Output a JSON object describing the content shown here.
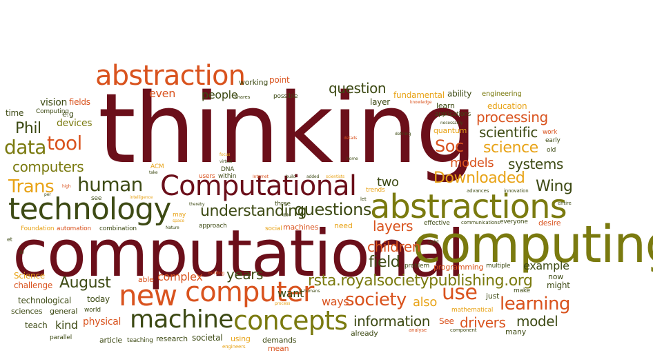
{
  "colors": {
    "maroon": "#6b0f1a",
    "orange": "#d9531e",
    "olive": "#7a7a0f",
    "gold": "#e8a317",
    "darkgreen": "#3d4a14",
    "background": "#ffffff"
  },
  "words": [
    {
      "text": "thinking",
      "color": "maroon"
    },
    {
      "text": "computational",
      "color": "maroon"
    },
    {
      "text": "computing",
      "color": "olive"
    },
    {
      "text": "abstractions",
      "color": "olive"
    },
    {
      "text": "Computational",
      "color": "maroon"
    },
    {
      "text": "technology",
      "color": "darkgreen"
    },
    {
      "text": "abstraction",
      "color": "orange"
    },
    {
      "text": "new",
      "color": "orange"
    },
    {
      "text": "computer",
      "color": "orange"
    },
    {
      "text": "machine",
      "color": "darkgreen"
    },
    {
      "text": "concepts",
      "color": "olive"
    },
    {
      "text": "rsta.royalsocietypublishing.org",
      "color": "olive"
    },
    {
      "text": "human",
      "color": "darkgreen"
    },
    {
      "text": "Downloaded",
      "color": "gold"
    },
    {
      "text": "use",
      "color": "orange"
    },
    {
      "text": "learning",
      "color": "orange"
    },
    {
      "text": "society",
      "color": "orange"
    },
    {
      "text": "questions",
      "color": "darkgreen"
    },
    {
      "text": "understanding",
      "color": "darkgreen"
    },
    {
      "text": "question",
      "color": "darkgreen"
    },
    {
      "text": "data",
      "color": "olive"
    },
    {
      "text": "tool",
      "color": "orange"
    },
    {
      "text": "Trans",
      "color": "gold"
    },
    {
      "text": "Phil",
      "color": "darkgreen"
    },
    {
      "text": "computers",
      "color": "olive"
    },
    {
      "text": "Soc",
      "color": "orange"
    },
    {
      "text": "science",
      "color": "gold"
    },
    {
      "text": "scientific",
      "color": "darkgreen"
    },
    {
      "text": "processing",
      "color": "orange"
    },
    {
      "text": "systems",
      "color": "darkgreen"
    },
    {
      "text": "models",
      "color": "orange"
    },
    {
      "text": "Wing",
      "color": "darkgreen"
    },
    {
      "text": "layers",
      "color": "orange"
    },
    {
      "text": "children",
      "color": "orange"
    },
    {
      "text": "field",
      "color": "darkgreen"
    },
    {
      "text": "information",
      "color": "darkgreen"
    },
    {
      "text": "August",
      "color": "darkgreen"
    },
    {
      "text": "years",
      "color": "darkgreen"
    },
    {
      "text": "complex",
      "color": "orange"
    },
    {
      "text": "drivers",
      "color": "orange"
    },
    {
      "text": "model",
      "color": "darkgreen"
    },
    {
      "text": "example",
      "color": "darkgreen"
    },
    {
      "text": "ways",
      "color": "orange"
    },
    {
      "text": "want",
      "color": "darkgreen"
    },
    {
      "text": "also",
      "color": "gold"
    },
    {
      "text": "two",
      "color": "darkgreen"
    },
    {
      "text": "people",
      "color": "darkgreen"
    },
    {
      "text": "even",
      "color": "orange"
    },
    {
      "text": "working",
      "color": "darkgreen"
    },
    {
      "text": "point",
      "color": "orange"
    },
    {
      "text": "vision",
      "color": "darkgreen"
    },
    {
      "text": "fields",
      "color": "orange"
    },
    {
      "text": "devices",
      "color": "olive"
    },
    {
      "text": "time",
      "color": "darkgreen"
    },
    {
      "text": "Computing",
      "color": "darkgreen"
    },
    {
      "text": "e.g",
      "color": "darkgreen"
    },
    {
      "text": "fundamental",
      "color": "gold"
    },
    {
      "text": "ability",
      "color": "darkgreen"
    },
    {
      "text": "engineering",
      "color": "olive"
    },
    {
      "text": "layer",
      "color": "darkgreen"
    },
    {
      "text": "learn",
      "color": "darkgreen"
    },
    {
      "text": "education",
      "color": "gold"
    },
    {
      "text": "applications",
      "color": "darkgreen"
    },
    {
      "text": "quantum",
      "color": "gold"
    },
    {
      "text": "work",
      "color": "orange"
    },
    {
      "text": "early",
      "color": "darkgreen"
    },
    {
      "text": "old",
      "color": "darkgreen"
    },
    {
      "text": "ACM",
      "color": "gold"
    },
    {
      "text": "DNA",
      "color": "darkgreen"
    },
    {
      "text": "users",
      "color": "orange"
    },
    {
      "text": "within",
      "color": "darkgreen"
    },
    {
      "text": "see",
      "color": "darkgreen"
    },
    {
      "text": "may",
      "color": "gold"
    },
    {
      "text": "automation",
      "color": "orange"
    },
    {
      "text": "combination",
      "color": "darkgreen"
    },
    {
      "text": "Foundation",
      "color": "gold"
    },
    {
      "text": "approach",
      "color": "darkgreen"
    },
    {
      "text": "machines",
      "color": "orange"
    },
    {
      "text": "need",
      "color": "gold"
    },
    {
      "text": "effective",
      "color": "darkgreen"
    },
    {
      "text": "everyone",
      "color": "darkgreen"
    },
    {
      "text": "desire",
      "color": "orange"
    },
    {
      "text": "communications",
      "color": "darkgreen"
    },
    {
      "text": "advances",
      "color": "darkgreen"
    },
    {
      "text": "innovation",
      "color": "darkgreen"
    },
    {
      "text": "entire",
      "color": "darkgreen"
    },
    {
      "text": "right",
      "color": "darkgreen"
    },
    {
      "text": "problem",
      "color": "darkgreen"
    },
    {
      "text": "programming",
      "color": "orange"
    },
    {
      "text": "multiple",
      "color": "darkgreen"
    },
    {
      "text": "now",
      "color": "darkgreen"
    },
    {
      "text": "might",
      "color": "darkgreen"
    },
    {
      "text": "make",
      "color": "darkgreen"
    },
    {
      "text": "just",
      "color": "darkgreen"
    },
    {
      "text": "mathematical",
      "color": "gold"
    },
    {
      "text": "See",
      "color": "orange"
    },
    {
      "text": "many",
      "color": "darkgreen"
    },
    {
      "text": "component",
      "color": "darkgreen"
    },
    {
      "text": "analyse",
      "color": "orange"
    },
    {
      "text": "already",
      "color": "darkgreen"
    },
    {
      "text": "demands",
      "color": "darkgreen"
    },
    {
      "text": "mean",
      "color": "orange"
    },
    {
      "text": "using",
      "color": "gold"
    },
    {
      "text": "engineers",
      "color": "gold"
    },
    {
      "text": "research",
      "color": "darkgreen"
    },
    {
      "text": "societal",
      "color": "darkgreen"
    },
    {
      "text": "teaching",
      "color": "darkgreen"
    },
    {
      "text": "article",
      "color": "darkgreen"
    },
    {
      "text": "physical",
      "color": "orange"
    },
    {
      "text": "kind",
      "color": "darkgreen"
    },
    {
      "text": "teach",
      "color": "darkgreen"
    },
    {
      "text": "parallel",
      "color": "darkgreen"
    },
    {
      "text": "general",
      "color": "darkgreen"
    },
    {
      "text": "sciences",
      "color": "darkgreen"
    },
    {
      "text": "world",
      "color": "darkgreen"
    },
    {
      "text": "technological",
      "color": "darkgreen"
    },
    {
      "text": "today",
      "color": "darkgreen"
    },
    {
      "text": "challenge",
      "color": "orange"
    },
    {
      "text": "Science",
      "color": "gold"
    },
    {
      "text": "able",
      "color": "orange"
    },
    {
      "text": "al",
      "color": "darkgreen"
    },
    {
      "text": "et",
      "color": "darkgreen"
    },
    {
      "text": "per",
      "color": "darkgreen"
    },
    {
      "text": "high",
      "color": "orange"
    },
    {
      "text": "intelligence",
      "color": "gold"
    },
    {
      "text": "take",
      "color": "darkgreen"
    },
    {
      "text": "shares",
      "color": "darkgreen"
    },
    {
      "text": "possible",
      "color": "darkgreen"
    },
    {
      "text": "knowledge",
      "color": "orange"
    },
    {
      "text": "necessarily",
      "color": "darkgreen"
    },
    {
      "text": "defining",
      "color": "darkgreen"
    },
    {
      "text": "details",
      "color": "orange"
    },
    {
      "text": "home",
      "color": "darkgreen"
    },
    {
      "text": "focus",
      "color": "gold"
    },
    {
      "text": "virtual",
      "color": "darkgreen"
    },
    {
      "text": "Internet",
      "color": "orange"
    },
    {
      "text": "build",
      "color": "darkgreen"
    },
    {
      "text": "added",
      "color": "darkgreen"
    },
    {
      "text": "scientists",
      "color": "gold"
    },
    {
      "text": "trends",
      "color": "gold"
    },
    {
      "text": "let",
      "color": "darkgreen"
    },
    {
      "text": "thereby",
      "color": "darkgreen"
    },
    {
      "text": "three",
      "color": "darkgreen"
    },
    {
      "text": "space",
      "color": "gold"
    },
    {
      "text": "IBM",
      "color": "darkgreen"
    },
    {
      "text": "social",
      "color": "gold"
    },
    {
      "text": "Nature",
      "color": "darkgreen"
    },
    {
      "text": "building",
      "color": "orange"
    },
    {
      "text": "process",
      "color": "gold"
    },
    {
      "text": "humans",
      "color": "darkgreen"
    }
  ]
}
